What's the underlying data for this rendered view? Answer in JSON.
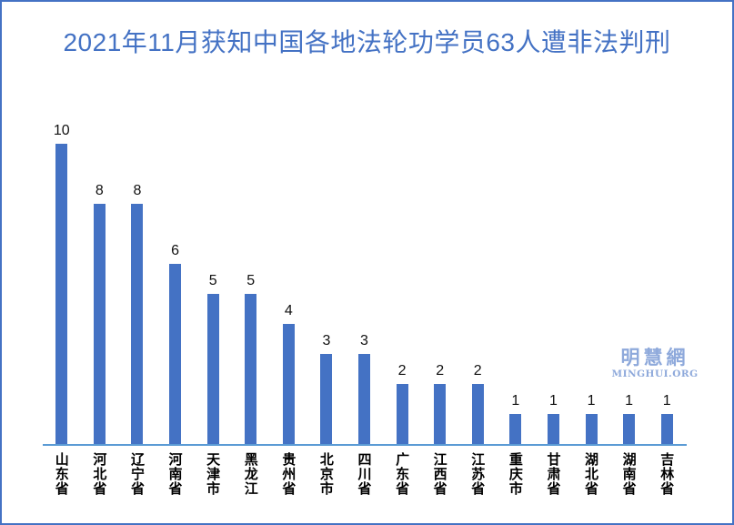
{
  "page": {
    "background_color": "#ffffff",
    "border_color": "#4472C4"
  },
  "title": {
    "text": "2021年11月获知中国各地法轮功学员63人遭非法判刑",
    "color": "#4472C4"
  },
  "watermark": {
    "logo_text": "明慧網",
    "site_text": "MINGHUI.ORG",
    "color": "#8EA9DB"
  },
  "chart_data": {
    "type": "bar",
    "title": "2021年11月获知中国各地法轮功学员63人遭非法判刑",
    "categories": [
      "山东省",
      "河北省",
      "辽宁省",
      "河南省",
      "天津市",
      "黑龙江",
      "贵州省",
      "北京市",
      "四川省",
      "广东省",
      "江西省",
      "江苏省",
      "重庆市",
      "甘肃省",
      "湖北省",
      "湖南省",
      "吉林省"
    ],
    "values": [
      10,
      8,
      8,
      6,
      5,
      5,
      4,
      3,
      3,
      2,
      2,
      2,
      1,
      1,
      1,
      1,
      1
    ],
    "total": 63,
    "xlabel": "",
    "ylabel": "",
    "ylim": [
      0,
      10
    ],
    "grid": false,
    "legend": "none",
    "data_labels": true,
    "bar_color": "#4472C4",
    "axis_line_color": "#5B9BD5",
    "label_color": "#111111",
    "category_label_orientation": "vertical-upright"
  }
}
